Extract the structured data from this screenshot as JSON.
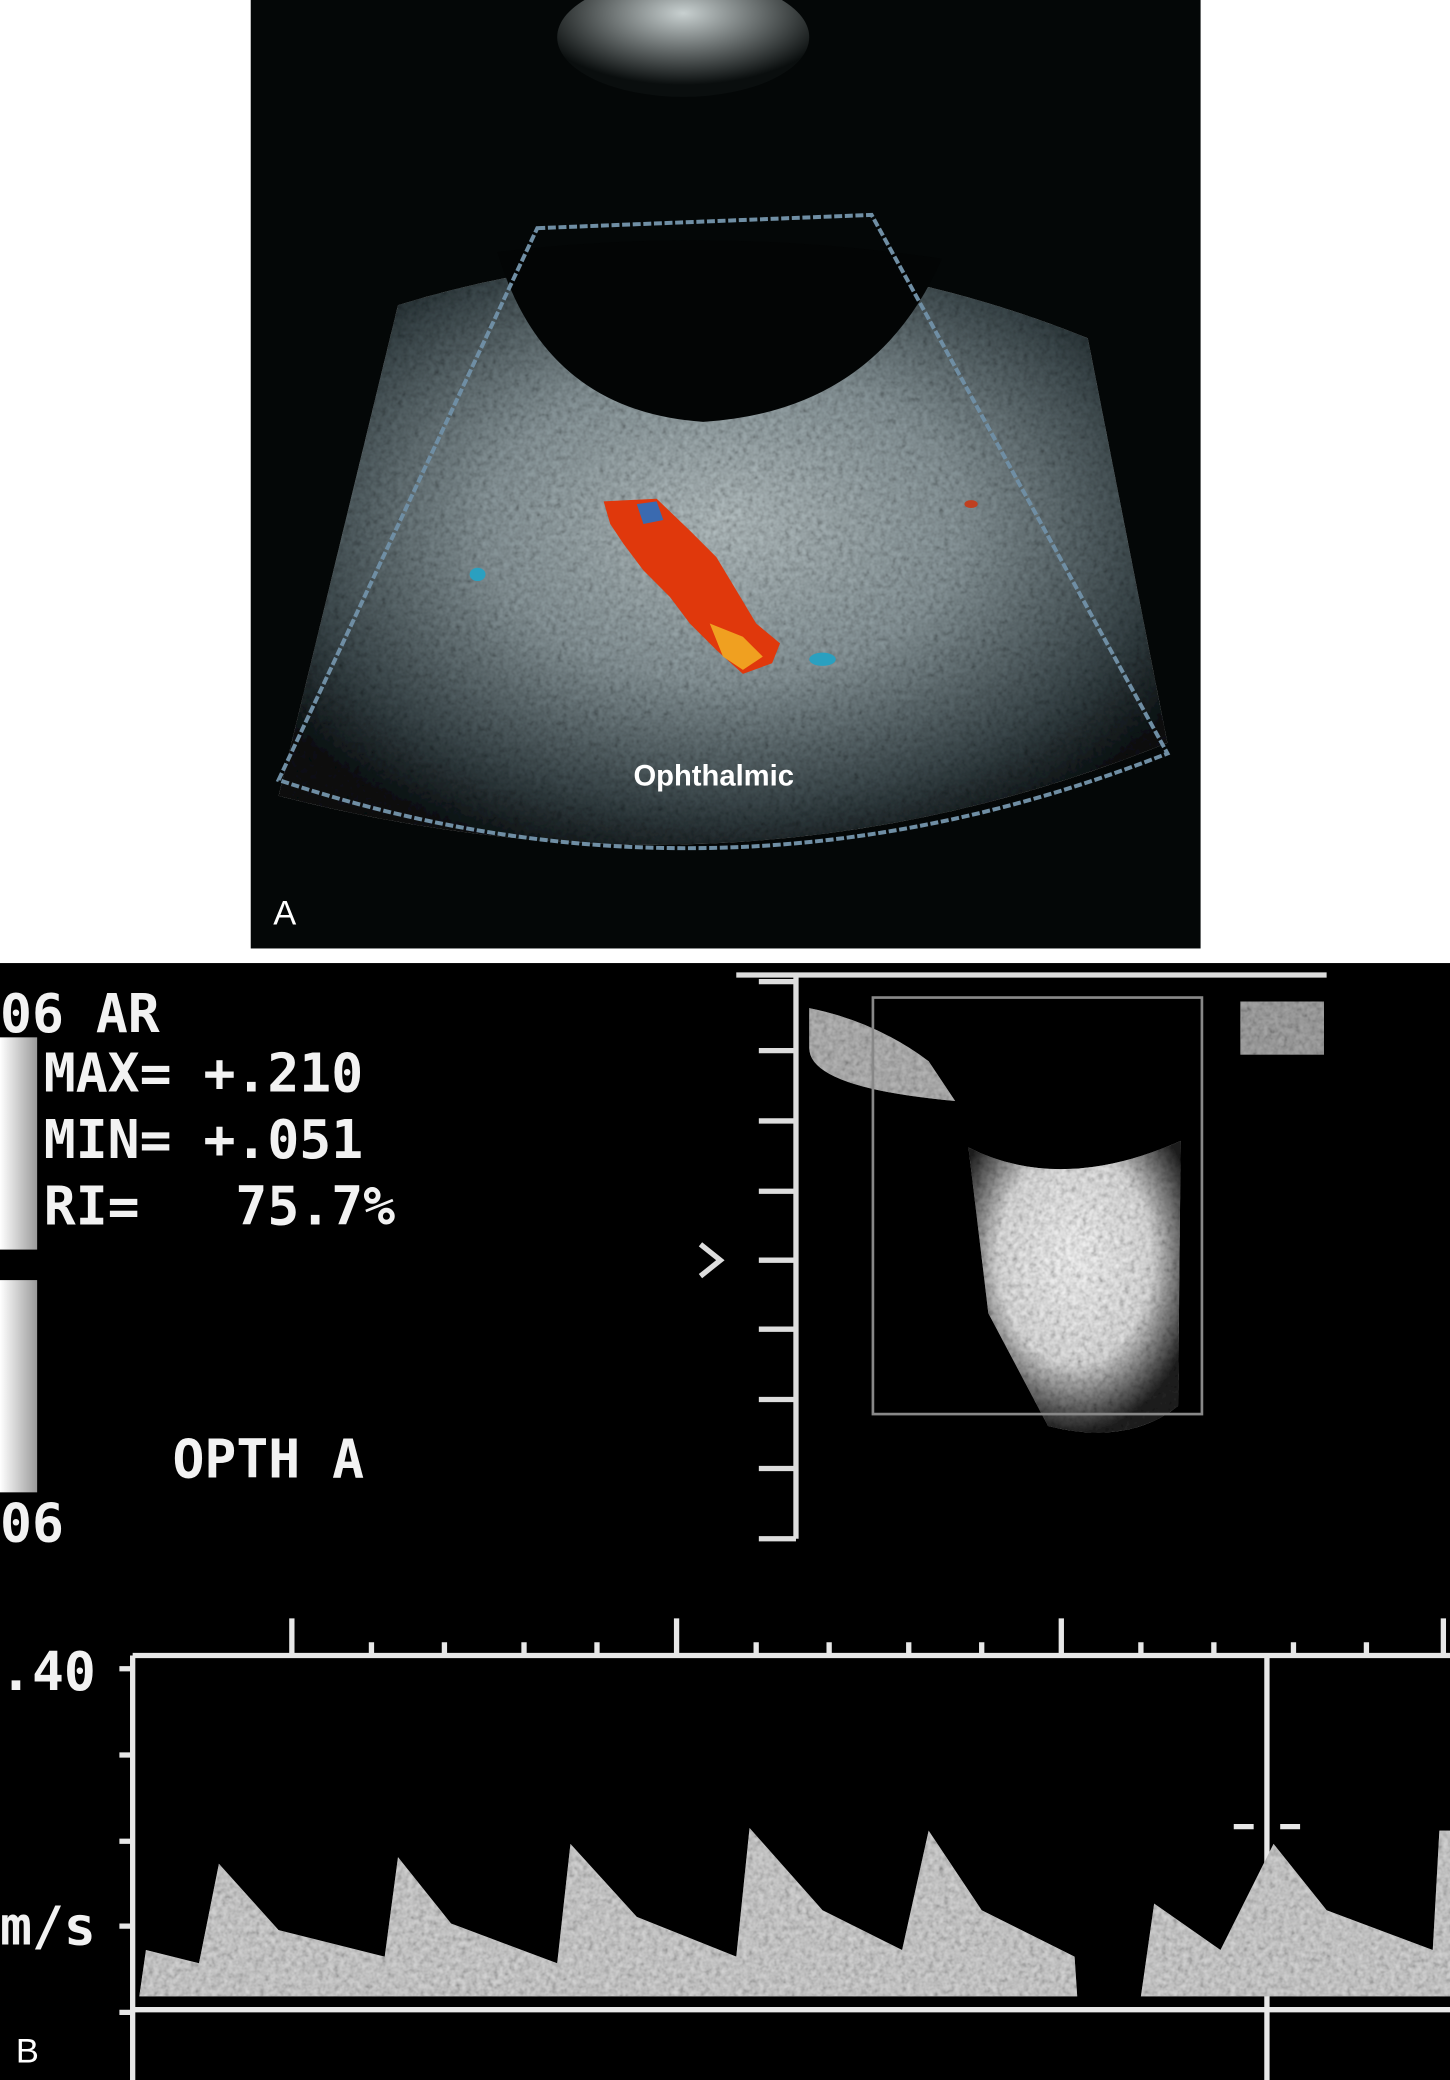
{
  "panel_a": {
    "label": "A",
    "annotation": "Ophthalmic"
  },
  "panel_b": {
    "label": "B",
    "readout": {
      "line1": "06 AR",
      "max": "MAX= +.210",
      "min": "MIN= +.051",
      "ri": "RI=   75.7%"
    },
    "vessel": "OPTH A",
    "bottom_left": "06",
    "scale_top": ".40",
    "unit": "m/s"
  }
}
